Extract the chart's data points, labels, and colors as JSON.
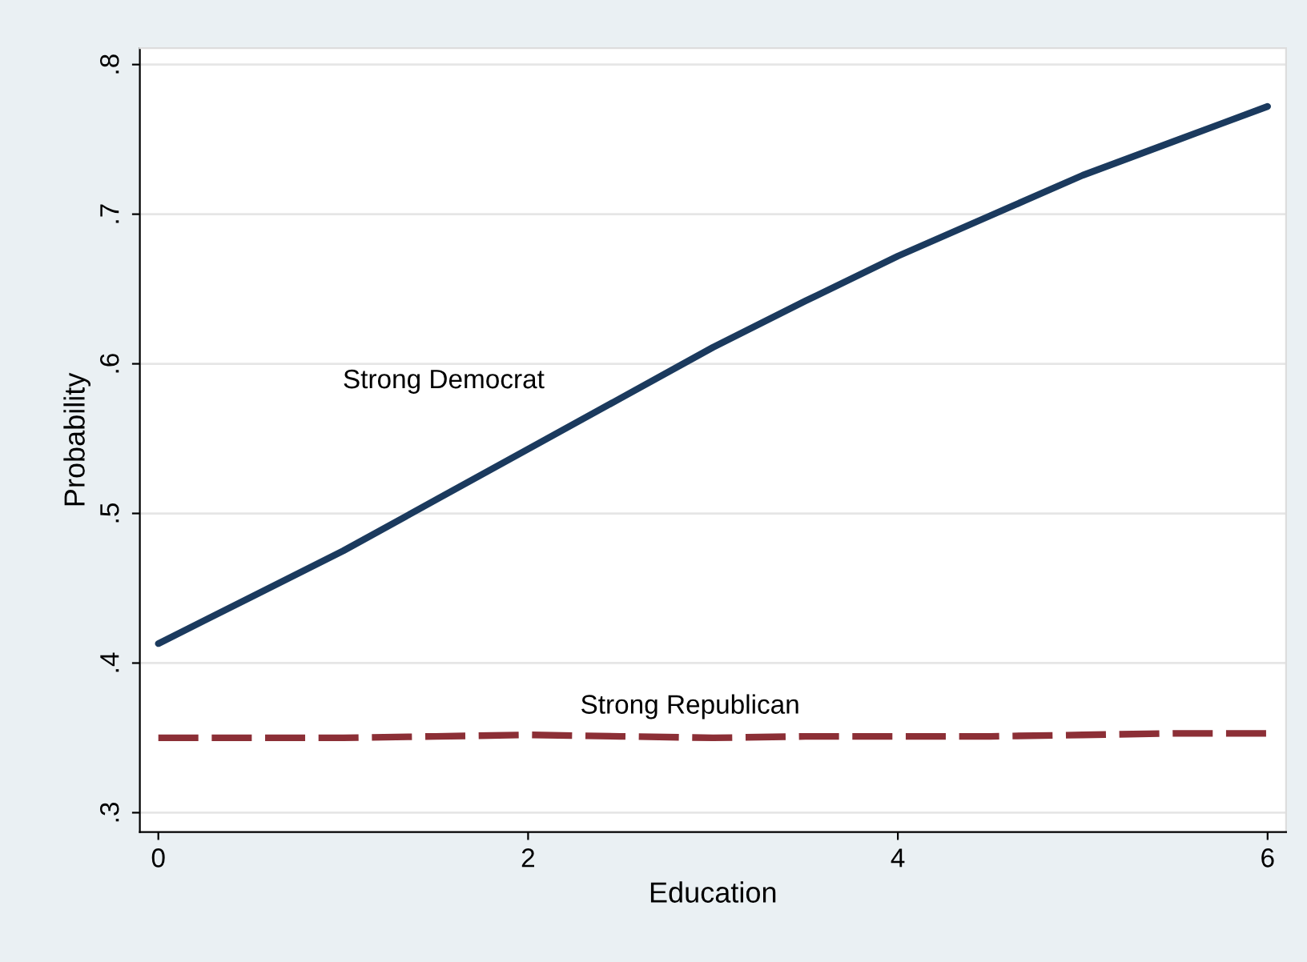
{
  "chart_data": {
    "type": "line",
    "xlabel": "Education",
    "ylabel": "Probability",
    "x": [
      0,
      0.5,
      1,
      1.5,
      2,
      2.5,
      3,
      3.5,
      4,
      4.5,
      5,
      5.5,
      6
    ],
    "series": [
      {
        "name": "Strong Democrat",
        "color": "#1b3a5e",
        "line_style": "solid",
        "values": [
          0.413,
          0.444,
          0.475,
          0.509,
          0.543,
          0.577,
          0.611,
          0.642,
          0.672,
          0.699,
          0.726,
          0.749,
          0.772
        ]
      },
      {
        "name": "Strong Republican",
        "color": "#8c2f36",
        "line_style": "dashed",
        "values": [
          0.35,
          0.35,
          0.35,
          0.351,
          0.352,
          0.351,
          0.35,
          0.351,
          0.351,
          0.351,
          0.352,
          0.353,
          0.353
        ]
      }
    ],
    "xlim": [
      -0.1,
      6.1
    ],
    "xticks": [
      0,
      2,
      4,
      6
    ],
    "ylim": [
      0.287,
      0.811
    ],
    "yticks": [
      {
        "value": 0.3,
        "label": ".3"
      },
      {
        "value": 0.4,
        "label": ".4"
      },
      {
        "value": 0.5,
        "label": ".5"
      },
      {
        "value": 0.6,
        "label": ".6"
      },
      {
        "value": 0.7,
        "label": ".7"
      },
      {
        "value": 0.8,
        "label": ".8"
      }
    ],
    "grid": "y",
    "legend": false
  }
}
